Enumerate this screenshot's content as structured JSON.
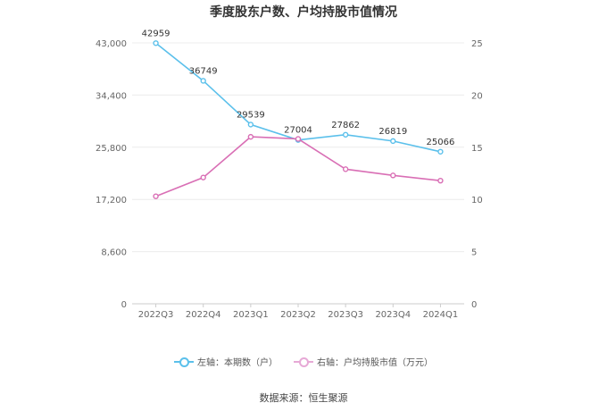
{
  "chart_data": {
    "type": "line",
    "title": "季度股东户数、户均持股市值情况",
    "categories": [
      "2022Q3",
      "2022Q4",
      "2023Q1",
      "2023Q2",
      "2023Q3",
      "2023Q4",
      "2024Q1"
    ],
    "left_axis": {
      "ticks": [
        "0",
        "8,600",
        "17,200",
        "25,800",
        "34,400",
        "43,000"
      ],
      "ylim": [
        0,
        43000
      ]
    },
    "right_axis": {
      "ticks": [
        "0",
        "5",
        "10",
        "15",
        "20",
        "25"
      ],
      "ylim": [
        0,
        25
      ]
    },
    "series": [
      {
        "name": "左轴：本期数（户）",
        "axis": "left",
        "color": "#5bc0eb",
        "values": [
          42959,
          36749,
          29539,
          27004,
          27862,
          26819,
          25066
        ],
        "labels": [
          "42959",
          "36749",
          "29539",
          "27004",
          "27862",
          "26819",
          "25066"
        ]
      },
      {
        "name": "右轴：户均持股市值（万元）",
        "axis": "right",
        "color": "#d96fb5",
        "values": [
          10.3,
          12.1,
          16.0,
          15.8,
          12.9,
          12.3,
          11.8
        ]
      }
    ],
    "grid": true,
    "legend_position": "bottom"
  },
  "footer": {
    "source": "数据来源：恒生聚源"
  }
}
